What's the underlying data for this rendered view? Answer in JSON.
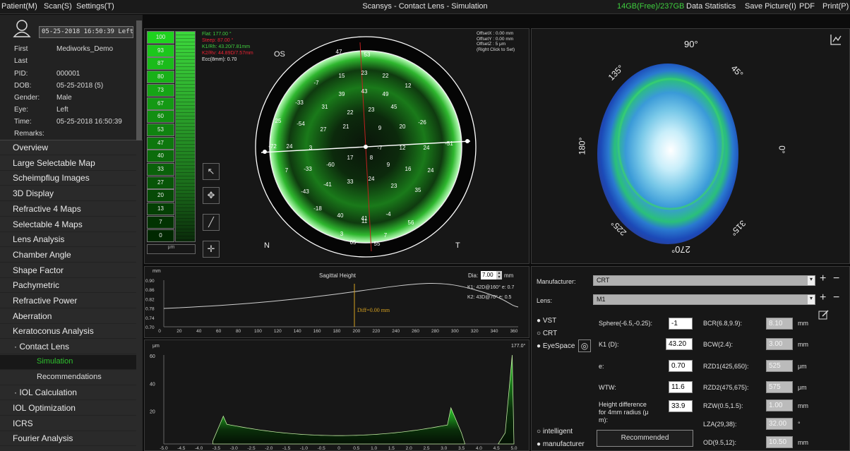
{
  "menubar": {
    "patient": "Patient(M)",
    "scan": "Scan(S)",
    "settings": "Settings(T)",
    "title": "Scansys - Contact Lens - Simulation",
    "free": "14GB(Free)/237GB",
    "stats": "Data Statistics",
    "save": "Save Picture(I)",
    "pdf": "PDF",
    "print": "Print(P)"
  },
  "patient": {
    "date_select": "05-25-2018 16:50:39 Left",
    "first_label": "First",
    "first": "Mediworks_Demo",
    "last_label": "Last",
    "pid_label": "PID:",
    "pid": "000001",
    "dob_label": "DOB:",
    "dob": "05-25-2018  (5)",
    "gender_label": "Gender:",
    "gender": "Male",
    "eye_label": "Eye:",
    "eye": "Left",
    "time_label": "Time:",
    "time": "05-25-2018 16:50:39",
    "remarks_label": "Remarks:"
  },
  "nav": [
    "Overview",
    "Large Selectable Map",
    "Scheimpflug Images",
    "3D Display",
    "Refractive 4 Maps",
    "Selectable 4 Maps",
    "Lens Analysis",
    "Chamber Angle",
    "Shape Factor",
    "Pachymetric",
    "Refractive Power",
    "Aberration",
    "Keratoconus Analysis",
    "· Contact Lens",
    "Simulation",
    "Recommendations",
    "· IOL Calculation",
    "IOL Optimization",
    "ICRS",
    "Fourier Analysis"
  ],
  "scale": {
    "values": [
      "100",
      "93",
      "87",
      "80",
      "73",
      "67",
      "60",
      "53",
      "47",
      "40",
      "33",
      "27",
      "20",
      "13",
      "7",
      "0"
    ],
    "unit": "μm"
  },
  "fluor": {
    "flat": "Flat: 177.00 °",
    "steep": "Steep: 87.00 °",
    "k1": "K1/Rh: 43.20/7.81mm",
    "k2": "K2/Rv: 44.89D/7.57mm",
    "ecc": "Ecc(8mm): 0.70",
    "offx": "OffsetX : 0.00 mm",
    "offy": "OffsetY : 0.00 mm",
    "offz": "OffsetZ : 5 μm",
    "hint": "(Right Click to Set)",
    "os": "OS",
    "n": "N",
    "t": "T",
    "cell_values": [
      "47",
      "53",
      "15",
      "23",
      "22",
      "-7",
      "39",
      "43",
      "49",
      "12",
      "-33",
      "31",
      "22",
      "23",
      "45",
      "25",
      "-54",
      "27",
      "21",
      "9",
      "20",
      "-26",
      "-72",
      "24",
      "3",
      "-7",
      "12",
      "24",
      "-51",
      "7",
      "-33",
      "-60",
      "17",
      "8",
      "9",
      "16",
      "24",
      "-43",
      "-41",
      "33",
      "24",
      "23",
      "35",
      "-18",
      "40",
      "41",
      "-4",
      "3",
      "11",
      "7",
      "56",
      "65",
      "55"
    ]
  },
  "topo": {
    "a90": "90°",
    "a45": "45°",
    "a135": "135°",
    "a180": "180°",
    "a0": "0°",
    "a225": "225°",
    "a315": "315°",
    "a270": "270°"
  },
  "sag": {
    "unit": "mm",
    "title": "Sagittal Height",
    "dia_label": "Dia:",
    "dia": "7.00",
    "dia_unit": "mm",
    "k1": "K1: 42D@160° e: 0.7",
    "k2": "K2: 43D@70° e: 0.5",
    "diff": "Diff=0.00 mm",
    "yticks": [
      "0.90",
      "0.86",
      "0.82",
      "0.78",
      "0.74",
      "0.70"
    ],
    "xticks": [
      "0",
      "20",
      "40",
      "60",
      "80",
      "100",
      "120",
      "140",
      "160",
      "180",
      "200",
      "220",
      "240",
      "260",
      "280",
      "300",
      "320",
      "340",
      "360"
    ]
  },
  "fluo": {
    "unit": "μm",
    "angle": "177.0°",
    "yticks": [
      "60",
      "40",
      "20"
    ],
    "xticks": [
      "-5.0",
      "-4.5",
      "-4.0",
      "-3.5",
      "-3.0",
      "-2.5",
      "-2.0",
      "-1.5",
      "-1.0",
      "-0.5",
      "0",
      "0.5",
      "1.0",
      "1.5",
      "2.0",
      "2.5",
      "3.0",
      "3.5",
      "4.0",
      "4.5",
      "5.0"
    ]
  },
  "form": {
    "manufacturer_label": "Manufacturer:",
    "manufacturer": "CRT",
    "lens_label": "Lens:",
    "lens": "M1",
    "vst": "VST",
    "crt": "CRT",
    "eyespace": "EyeSpace",
    "sphere_label": "Sphere(-6.5,-0.25):",
    "sphere": "-1",
    "k1_label": "K1 (D):",
    "k1": "43.20",
    "e_label": "e:",
    "e": "0.70",
    "wtw_label": "WTW:",
    "wtw": "11.6",
    "hd_label1": "Height difference",
    "hd_label2": "for 4mm radius (μ",
    "hd_label3": "m):",
    "hd": "33.9",
    "bcr_label": "BCR(6.8,9.9):",
    "bcr": "8.10",
    "bcr_unit": "mm",
    "bcw_label": "BCW(2.4):",
    "bcw": "3.00",
    "bcw_unit": "mm",
    "rzd1_label": "RZD1(425,650):",
    "rzd1": "525",
    "rzd1_unit": "μm",
    "rzd2_label": "RZD2(475,675):",
    "rzd2": "575",
    "rzd2_unit": "μm",
    "rzw_label": "RZW(0.5,1.5):",
    "rzw": "1.00",
    "rzw_unit": "mm",
    "lza_label": "LZA(29,38):",
    "lza": "32.00",
    "lza_unit": "°",
    "od_label": "OD(9.5,12):",
    "od": "10.50",
    "od_unit": "mm",
    "intelligent": "intelligent",
    "manufacturer_radio": "manufacturer",
    "recommended": "Recommended"
  }
}
